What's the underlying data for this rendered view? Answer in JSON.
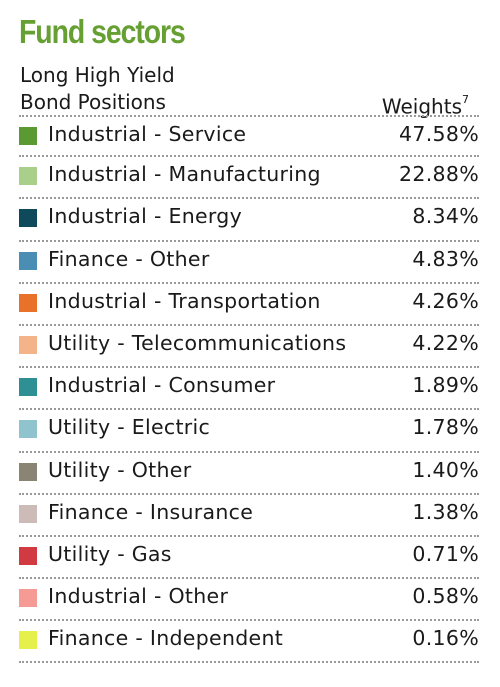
{
  "title": "Fund sectors",
  "header": {
    "left_line1": "Long High Yield",
    "left_line2": "Bond Positions",
    "right": "Weights",
    "right_footnote": "7"
  },
  "chart_data": {
    "type": "table",
    "title": "Fund sectors",
    "columns": [
      "Long High Yield Bond Positions",
      "Weights"
    ],
    "rows": [
      {
        "label": "Industrial - Service",
        "display": "47.58%",
        "value": 47.58,
        "color": "#5b9a32"
      },
      {
        "label": "Industrial - Manufacturing",
        "display": "22.88%",
        "value": 22.88,
        "color": "#a9cf8b"
      },
      {
        "label": "Industrial - Energy",
        "display": "8.34%",
        "value": 8.34,
        "color": "#0e4a5c"
      },
      {
        "label": "Finance - Other",
        "display": "4.83%",
        "value": 4.83,
        "color": "#4a8eb4"
      },
      {
        "label": "Industrial - Transportation",
        "display": "4.26%",
        "value": 4.26,
        "color": "#e8722a"
      },
      {
        "label": "Utility - Telecommunications",
        "display": "4.22%",
        "value": 4.22,
        "color": "#f4b48a"
      },
      {
        "label": "Industrial - Consumer",
        "display": "1.89%",
        "value": 1.89,
        "color": "#2e8f94"
      },
      {
        "label": "Utility - Electric",
        "display": "1.78%",
        "value": 1.78,
        "color": "#8fc4cf"
      },
      {
        "label": "Utility - Other",
        "display": "1.40%",
        "value": 1.4,
        "color": "#8a8474"
      },
      {
        "label": "Finance - Insurance",
        "display": "1.38%",
        "value": 1.38,
        "color": "#cdbbb8"
      },
      {
        "label": "Utility - Gas",
        "display": "0.71%",
        "value": 0.71,
        "color": "#d13a40"
      },
      {
        "label": "Industrial - Other",
        "display": "0.58%",
        "value": 0.58,
        "color": "#f59a95"
      },
      {
        "label": "Finance - Independent",
        "display": "0.16%",
        "value": 0.16,
        "color": "#e5f04a"
      }
    ]
  }
}
